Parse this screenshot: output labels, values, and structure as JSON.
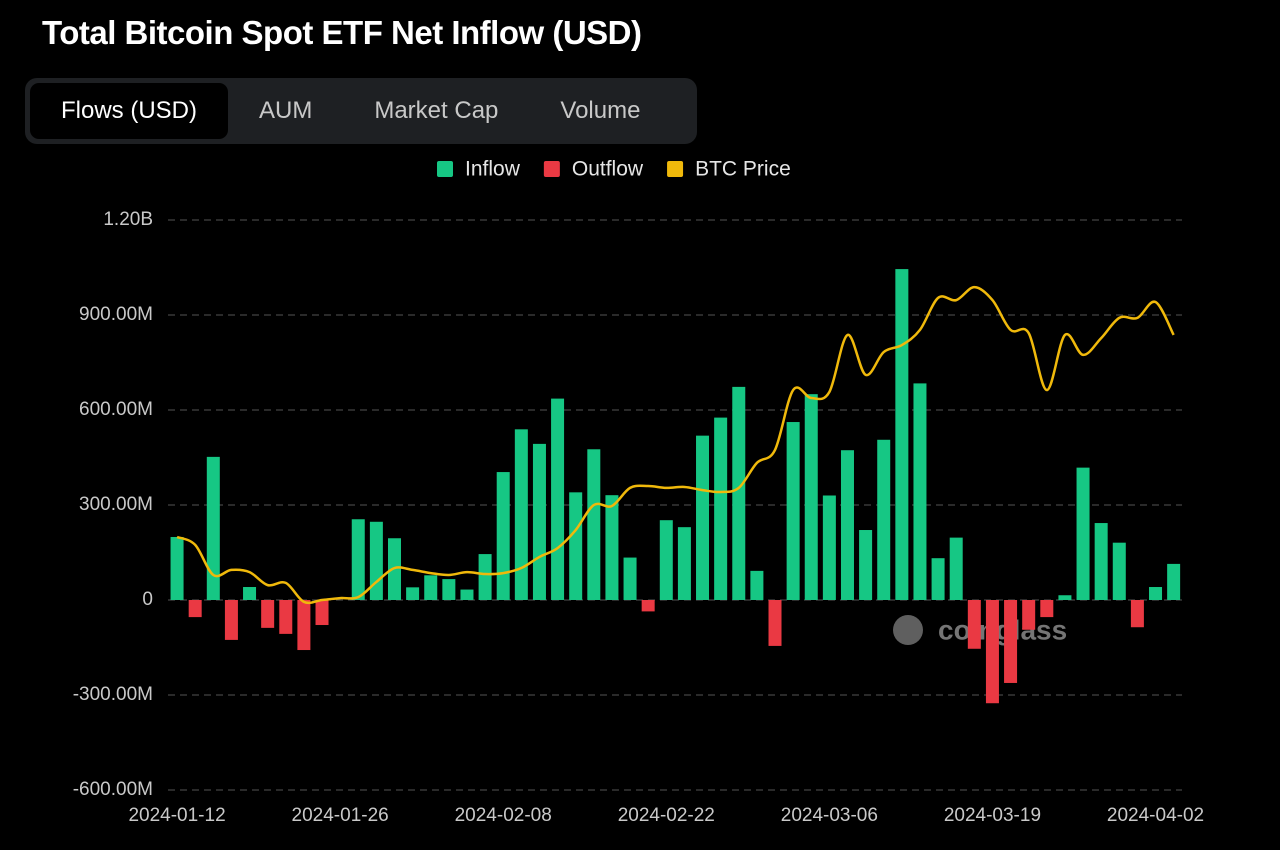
{
  "header": {
    "title": "Total Bitcoin Spot ETF Net Inflow (USD)",
    "tabs": [
      "Flows (USD)",
      "AUM",
      "Market Cap",
      "Volume"
    ],
    "active_tab": 0
  },
  "chart_data": {
    "type": "bar",
    "categories": [
      "2024-01-12",
      null,
      null,
      null,
      null,
      null,
      null,
      null,
      null,
      "2024-01-26",
      null,
      null,
      null,
      null,
      null,
      null,
      null,
      null,
      "2024-02-08",
      null,
      null,
      null,
      null,
      null,
      null,
      null,
      null,
      "2024-02-22",
      null,
      null,
      null,
      null,
      null,
      null,
      null,
      null,
      "2024-03-06",
      null,
      null,
      null,
      null,
      null,
      null,
      null,
      null,
      "2024-03-19",
      null,
      null,
      null,
      null,
      null,
      null,
      null,
      null,
      "2024-04-02",
      null
    ],
    "series": [
      {
        "name": "Inflow",
        "color": "#16c784",
        "values": [
          199,
          null,
          452,
          null,
          41,
          null,
          null,
          null,
          null,
          0,
          255,
          247,
          195,
          40,
          78,
          66,
          33,
          145,
          404,
          539,
          493,
          636,
          340,
          476,
          331,
          134,
          null,
          252,
          230,
          519,
          576,
          673,
          92,
          null,
          562,
          650,
          330,
          473,
          221,
          506,
          1045,
          684,
          132,
          197,
          null,
          null,
          null,
          null,
          null,
          15,
          418,
          243,
          181,
          null,
          41,
          114
        ]
      },
      {
        "name": "Outflow",
        "color": "#ea3943",
        "values": [
          null,
          -54,
          null,
          -126,
          null,
          -88,
          -107,
          -158,
          -79,
          null,
          null,
          null,
          null,
          null,
          null,
          null,
          null,
          null,
          null,
          null,
          null,
          null,
          null,
          null,
          null,
          null,
          -36,
          null,
          null,
          null,
          null,
          null,
          null,
          -145,
          null,
          null,
          null,
          null,
          null,
          null,
          null,
          null,
          null,
          null,
          -154,
          -326,
          -262,
          -94,
          -54,
          null,
          null,
          null,
          null,
          -86,
          null,
          null
        ]
      },
      {
        "name": "BTC Price",
        "color": "#f0b90b",
        "type": "line",
        "values": [
          199,
          174,
          79,
          95,
          88,
          47,
          54,
          -6,
          0,
          6,
          9,
          57,
          101,
          95,
          85,
          79,
          88,
          82,
          85,
          101,
          136,
          164,
          221,
          300,
          297,
          354,
          360,
          354,
          357,
          347,
          341,
          354,
          433,
          474,
          663,
          638,
          657,
          837,
          711,
          783,
          805,
          853,
          954,
          947,
          988,
          947,
          853,
          843,
          663,
          837,
          774,
          827,
          891,
          891,
          941,
          837
        ]
      }
    ],
    "ylim": [
      -600,
      1200
    ],
    "yticks": [
      {
        "value": -600,
        "label": "-600.00M"
      },
      {
        "value": -300,
        "label": "-300.00M"
      },
      0,
      {
        "value": 300,
        "label": "300.00M"
      },
      {
        "value": 600,
        "label": "600.00M"
      },
      {
        "value": 900,
        "label": "900.00M"
      },
      {
        "value": 1200,
        "label": "1.20B"
      }
    ],
    "grid": true,
    "legend": "top",
    "watermark": "coinglass"
  }
}
